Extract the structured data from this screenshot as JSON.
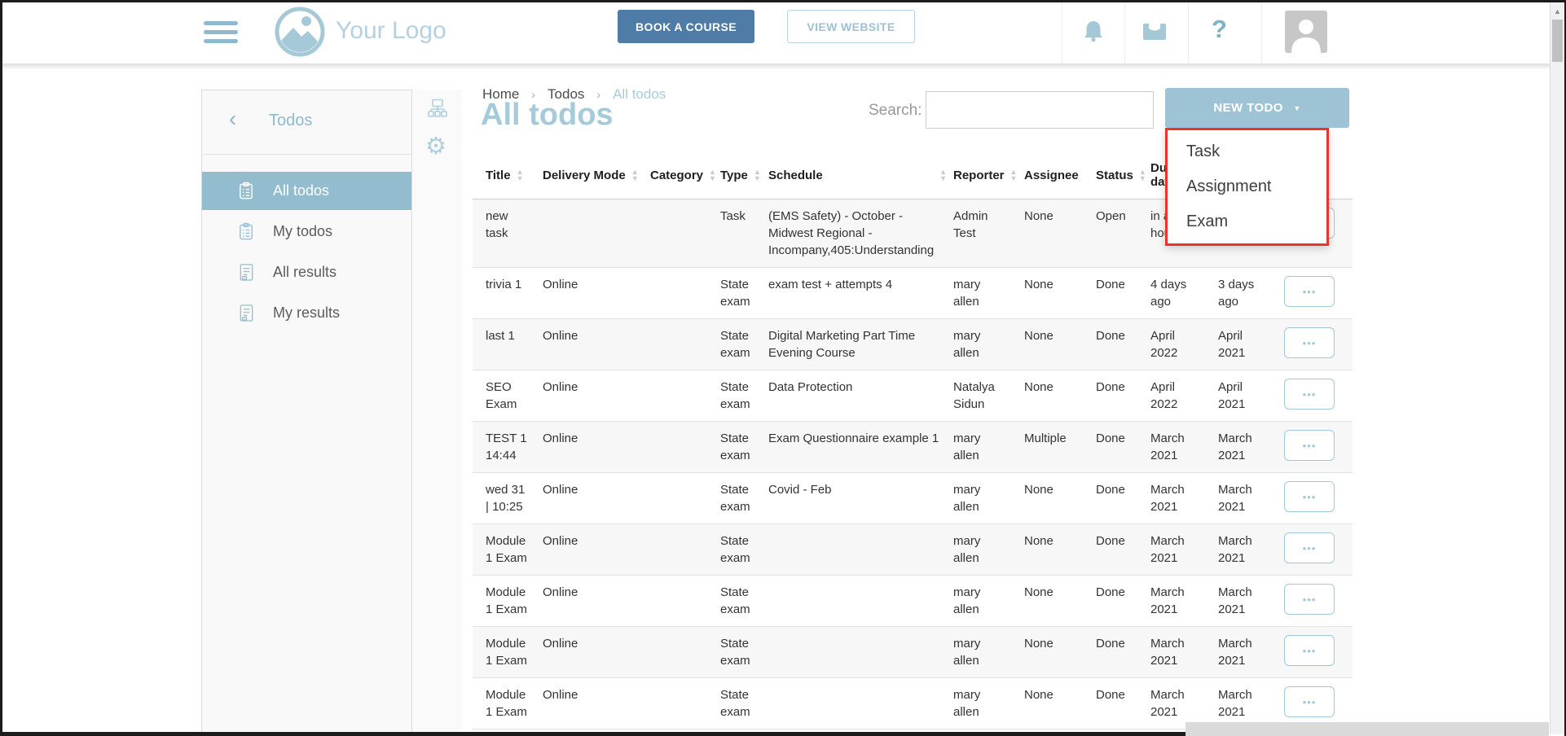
{
  "header": {
    "logo_text": "Your Logo",
    "book_course_label": "BOOK A COURSE",
    "view_website_label": "VIEW WEBSITE"
  },
  "sidebar": {
    "title": "Todos",
    "items": [
      {
        "label": "All todos",
        "selected": true
      },
      {
        "label": "My todos",
        "selected": false
      },
      {
        "label": "All results",
        "selected": false
      },
      {
        "label": "My results",
        "selected": false
      }
    ]
  },
  "breadcrumb": {
    "items": [
      "Home",
      "Todos",
      "All todos"
    ]
  },
  "page": {
    "title": "All todos"
  },
  "search": {
    "label": "Search:",
    "placeholder": "",
    "value": ""
  },
  "new_todo": {
    "label": "NEW TODO",
    "menu": [
      "Task",
      "Assignment",
      "Exam"
    ]
  },
  "table": {
    "columns": [
      {
        "key": "title",
        "label": "Title",
        "sort": true,
        "sort_right": false
      },
      {
        "key": "delivery-mode",
        "label": "Delivery Mode",
        "sort": true,
        "sort_right": false
      },
      {
        "key": "category",
        "label": "Category",
        "sort": true,
        "sort_right": false
      },
      {
        "key": "type",
        "label": "Type",
        "sort": true,
        "sort_right": false
      },
      {
        "key": "schedule",
        "label": "Schedule",
        "sort": true,
        "sort_right": true
      },
      {
        "key": "reporter",
        "label": "Reporter",
        "sort": true,
        "sort_right": false
      },
      {
        "key": "assignee",
        "label": "Assignee",
        "sort": false,
        "sort_right": false
      },
      {
        "key": "status",
        "label": "Status",
        "sort": true,
        "sort_right": false
      },
      {
        "key": "due-date",
        "label": "Due date",
        "sort": true,
        "sort_right": false
      },
      {
        "key": "date-2",
        "label": "",
        "sort": false,
        "sort_right": false
      },
      {
        "key": "actions",
        "label": "",
        "sort": false,
        "sort_right": false
      }
    ],
    "rows": [
      [
        "new task",
        "",
        "",
        "Task",
        "(EMS Safety) - October - Midwest Regional - Incompany,405:Understanding",
        "Admin Test",
        "None",
        "Open",
        "in an hour",
        ""
      ],
      [
        "trivia 1",
        "Online",
        "",
        "State exam",
        "exam test + attempts 4",
        "mary allen",
        "None",
        "Done",
        "4 days ago",
        "3 days ago"
      ],
      [
        "last 1",
        "Online",
        "",
        "State exam",
        "Digital Marketing Part Time Evening Course",
        "mary allen",
        "None",
        "Done",
        "April 2022",
        "April 2021"
      ],
      [
        "SEO Exam",
        "Online",
        "",
        "State exam",
        "Data Protection",
        "Natalya Sidun",
        "None",
        "Done",
        "April 2022",
        "April 2021"
      ],
      [
        "TEST 1 14:44",
        "Online",
        "",
        "State exam",
        "Exam Questionnaire example 1",
        "mary allen",
        "Multiple",
        "Done",
        "March 2021",
        "March 2021"
      ],
      [
        "wed 31 | 10:25",
        "Online",
        "",
        "State exam",
        "Covid - Feb",
        "mary allen",
        "None",
        "Done",
        "March 2021",
        "March 2021"
      ],
      [
        "Module 1 Exam",
        "Online",
        "",
        "State exam",
        "",
        "mary allen",
        "None",
        "Done",
        "March 2021",
        "March 2021"
      ],
      [
        "Module 1 Exam",
        "Online",
        "",
        "State exam",
        "",
        "mary allen",
        "None",
        "Done",
        "March 2021",
        "March 2021"
      ],
      [
        "Module 1 Exam",
        "Online",
        "",
        "State exam",
        "",
        "mary allen",
        "None",
        "Done",
        "March 2021",
        "March 2021"
      ],
      [
        "Module 1 Exam",
        "Online",
        "",
        "State exam",
        "",
        "mary allen",
        "None",
        "Done",
        "March 2021",
        "March 2021"
      ]
    ]
  },
  "glyphs": {
    "help": "?",
    "gear": "⚙",
    "caret_down": "▼",
    "breadcrumb_separator": "›",
    "back_chevron": "‹",
    "sort_up": "▲",
    "sort_down": "▼",
    "action_dots": "•••",
    "scroll_up_arrow": "▲"
  },
  "colors": {
    "accent_light_blue": "#9dc3d4",
    "accent_dark_blue": "#4e7ca7",
    "sidebar_selected": "#93bdce",
    "title_blue": "#a5cada",
    "annotation_red": "#e8352e"
  }
}
